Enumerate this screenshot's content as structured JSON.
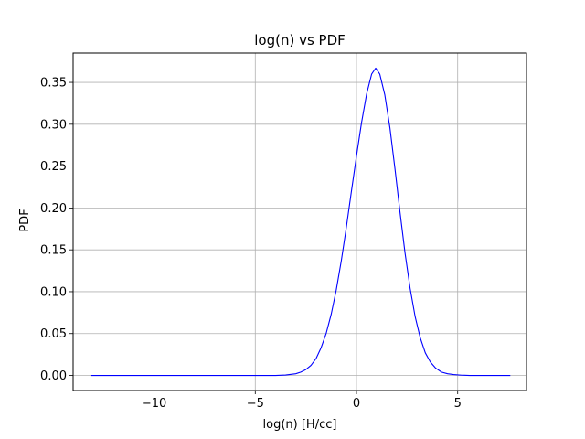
{
  "chart_data": {
    "type": "line",
    "title": "log(n) vs PDF",
    "xlabel": "log(n) [H/cc]",
    "ylabel": "PDF",
    "xlim": [
      -14.0,
      8.4
    ],
    "ylim": [
      -0.018,
      0.385
    ],
    "xticks": [
      -10,
      -5,
      0,
      5
    ],
    "xtick_labels": [
      "−10",
      "−5",
      "0",
      "5"
    ],
    "yticks": [
      0.0,
      0.05,
      0.1,
      0.15,
      0.2,
      0.25,
      0.3,
      0.35
    ],
    "ytick_labels": [
      "0.00",
      "0.05",
      "0.10",
      "0.15",
      "0.20",
      "0.25",
      "0.30",
      "0.35"
    ],
    "grid": true,
    "series": [
      {
        "color": "#0000ff",
        "x": [
          -13.1,
          -12.0,
          -11.0,
          -10.0,
          -9.0,
          -8.0,
          -7.0,
          -6.0,
          -5.0,
          -4.0,
          -3.5,
          -3.0,
          -2.75,
          -2.5,
          -2.25,
          -2.0,
          -1.75,
          -1.5,
          -1.25,
          -1.0,
          -0.75,
          -0.5,
          -0.25,
          0.0,
          0.25,
          0.5,
          0.75,
          0.95,
          1.15,
          1.4,
          1.65,
          1.9,
          2.15,
          2.4,
          2.65,
          2.9,
          3.15,
          3.4,
          3.65,
          3.9,
          4.2,
          4.5,
          4.8,
          5.2,
          5.6,
          6.0,
          6.5,
          7.0,
          7.6
        ],
        "y": [
          0.0,
          0.0,
          0.0,
          0.0,
          0.0,
          0.0,
          0.0,
          0.0,
          0.0,
          0.0,
          0.0005,
          0.002,
          0.004,
          0.007,
          0.012,
          0.02,
          0.033,
          0.05,
          0.073,
          0.102,
          0.137,
          0.177,
          0.22,
          0.262,
          0.302,
          0.336,
          0.36,
          0.367,
          0.36,
          0.335,
          0.296,
          0.247,
          0.195,
          0.146,
          0.104,
          0.07,
          0.045,
          0.027,
          0.016,
          0.009,
          0.004,
          0.002,
          0.001,
          0.0003,
          0.0,
          0.0,
          0.0,
          0.0,
          0.0
        ]
      }
    ]
  }
}
